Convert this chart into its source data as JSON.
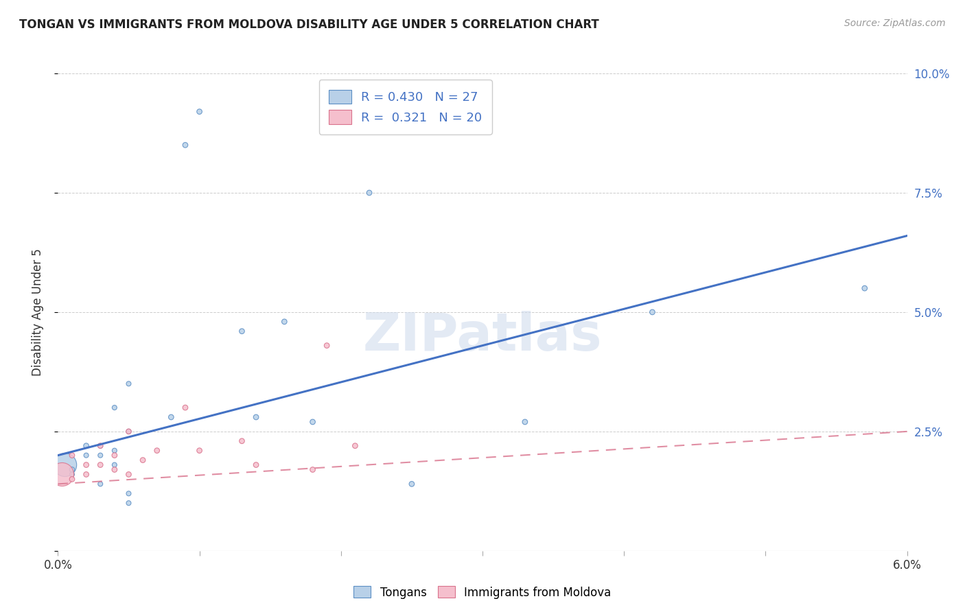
{
  "title": "TONGAN VS IMMIGRANTS FROM MOLDOVA DISABILITY AGE UNDER 5 CORRELATION CHART",
  "source": "Source: ZipAtlas.com",
  "ylabel": "Disability Age Under 5",
  "xlim": [
    0.0,
    0.06
  ],
  "ylim": [
    0.0,
    0.1
  ],
  "xticks": [
    0.0,
    0.01,
    0.02,
    0.03,
    0.04,
    0.05,
    0.06
  ],
  "xticklabels": [
    "0.0%",
    "",
    "",
    "",
    "",
    "",
    "6.0%"
  ],
  "yticks": [
    0.0,
    0.025,
    0.05,
    0.075,
    0.1
  ],
  "yticklabels": [
    "",
    "2.5%",
    "5.0%",
    "7.5%",
    "10.0%"
  ],
  "tongan_R": 0.43,
  "tongan_N": 27,
  "moldova_R": 0.321,
  "moldova_N": 20,
  "tongan_color": "#b8d0e8",
  "moldova_color": "#f5bfcd",
  "tongan_edge_color": "#5b8ec4",
  "moldova_edge_color": "#d9728c",
  "tongan_line_color": "#4472c4",
  "moldova_line_color": "#d9728c",
  "watermark": "ZIPatlas",
  "tongan_scatter_x": [
    0.0005,
    0.001,
    0.001,
    0.002,
    0.002,
    0.003,
    0.003,
    0.003,
    0.004,
    0.004,
    0.004,
    0.005,
    0.005,
    0.005,
    0.005,
    0.008,
    0.009,
    0.01,
    0.013,
    0.014,
    0.016,
    0.018,
    0.022,
    0.025,
    0.033,
    0.042,
    0.057
  ],
  "tongan_scatter_y": [
    0.018,
    0.017,
    0.016,
    0.022,
    0.02,
    0.022,
    0.02,
    0.014,
    0.021,
    0.018,
    0.03,
    0.025,
    0.035,
    0.012,
    0.01,
    0.028,
    0.085,
    0.092,
    0.046,
    0.028,
    0.048,
    0.027,
    0.075,
    0.014,
    0.027,
    0.05,
    0.055
  ],
  "tongan_scatter_size": [
    600,
    30,
    25,
    30,
    25,
    25,
    25,
    25,
    25,
    25,
    25,
    25,
    25,
    25,
    25,
    30,
    30,
    30,
    30,
    30,
    30,
    30,
    30,
    30,
    30,
    30,
    30
  ],
  "moldova_scatter_x": [
    0.0003,
    0.001,
    0.001,
    0.002,
    0.002,
    0.003,
    0.003,
    0.004,
    0.004,
    0.005,
    0.005,
    0.006,
    0.007,
    0.009,
    0.01,
    0.013,
    0.014,
    0.018,
    0.019,
    0.021
  ],
  "moldova_scatter_y": [
    0.016,
    0.015,
    0.02,
    0.018,
    0.016,
    0.018,
    0.022,
    0.02,
    0.017,
    0.025,
    0.016,
    0.019,
    0.021,
    0.03,
    0.021,
    0.023,
    0.018,
    0.017,
    0.043,
    0.022
  ],
  "moldova_scatter_size": [
    600,
    30,
    30,
    30,
    30,
    30,
    30,
    30,
    30,
    30,
    30,
    30,
    30,
    30,
    30,
    30,
    30,
    30,
    30,
    30
  ],
  "tongan_line_x": [
    0.0,
    0.06
  ],
  "tongan_line_y": [
    0.02,
    0.066
  ],
  "moldova_line_x": [
    0.0,
    0.06
  ],
  "moldova_line_y": [
    0.014,
    0.025
  ]
}
